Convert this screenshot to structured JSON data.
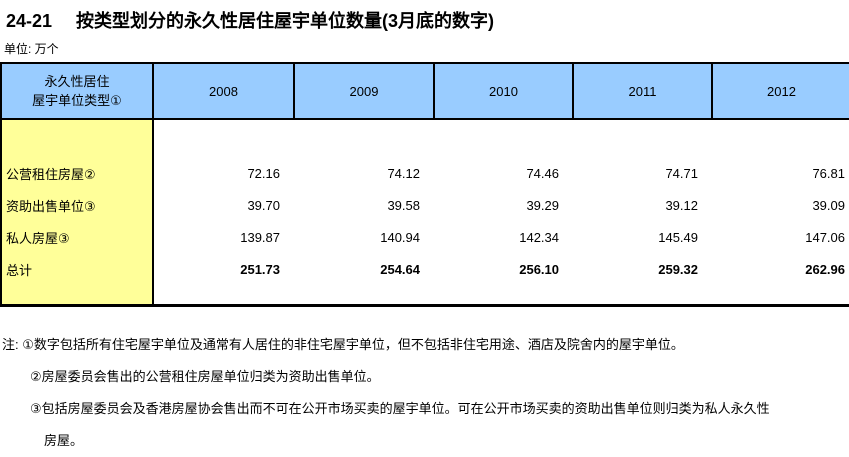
{
  "title": {
    "no": "24-21",
    "text": "按类型划分的永久性居住屋宇单位数量(3月底的数字)"
  },
  "unit_label": "单位: 万个",
  "table": {
    "row_header": {
      "line1": "永久性居住",
      "line2": "屋宇单位类型①"
    },
    "year_columns": [
      "2008",
      "2009",
      "2010",
      "2011",
      "2012"
    ],
    "rows": [
      {
        "label": "公营租住房屋②",
        "values": [
          "72.16",
          "74.12",
          "74.46",
          "74.71",
          "76.81"
        ]
      },
      {
        "label": "资助出售单位③",
        "values": [
          "39.70",
          "39.58",
          "39.29",
          "39.12",
          "39.09"
        ]
      },
      {
        "label": "私人房屋③",
        "values": [
          "139.87",
          "140.94",
          "142.34",
          "145.49",
          "147.06"
        ]
      },
      {
        "label": "总计",
        "values": [
          "251.73",
          "254.64",
          "256.10",
          "259.32",
          "262.96"
        ]
      }
    ]
  },
  "notes": {
    "lines": [
      "注: ①数字包括所有住宅屋宇单位及通常有人居住的非住宅屋宇单位，但不包括非住宅用途、酒店及院舍内的屋宇单位。",
      "②房屋委员会售出的公营租住房屋单位归类为资助出售单位。",
      "③包括房屋委员会及香港房屋协会售出而不可在公开市场买卖的屋宇单位。可在公开市场买卖的资助出售单位则归类为私人永久性",
      "房屋。"
    ]
  },
  "colors": {
    "header_bg": "#99CCFF",
    "label_col_bg": "#FFFF99",
    "border": "#000000"
  },
  "chart_data": {
    "type": "table",
    "title": "24-21 按类型划分的永久性居住屋宇单位数量(3月底的数字)",
    "unit": "万个",
    "columns": [
      "2008",
      "2009",
      "2010",
      "2011",
      "2012"
    ],
    "rows": [
      {
        "label": "公营租住房屋",
        "values": [
          72.16,
          74.12,
          74.46,
          74.71,
          76.81
        ]
      },
      {
        "label": "资助出售单位",
        "values": [
          39.7,
          39.58,
          39.29,
          39.12,
          39.09
        ]
      },
      {
        "label": "私人房屋",
        "values": [
          139.87,
          140.94,
          142.34,
          145.49,
          147.06
        ]
      },
      {
        "label": "总计",
        "values": [
          251.73,
          254.64,
          256.1,
          259.32,
          262.96
        ]
      }
    ]
  }
}
